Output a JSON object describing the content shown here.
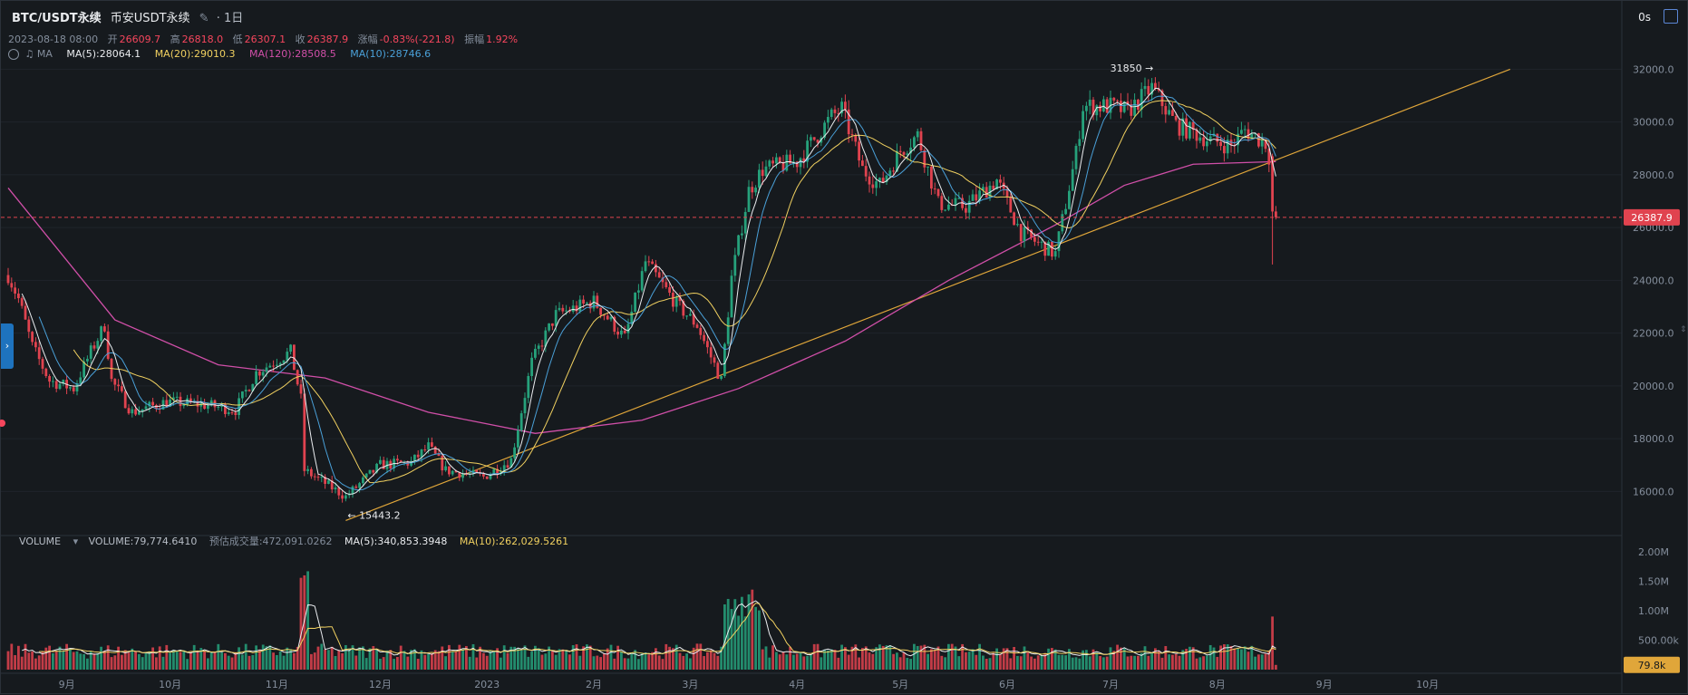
{
  "header": {
    "symbol": "BTC/USDT永续",
    "exchange": "币安USDT永续",
    "interval": "· 1日",
    "date": "2023-08-18 08:00",
    "open_label": "开",
    "open_value": "26609.7",
    "high_label": "高",
    "high_value": "26818.0",
    "low_label": "低",
    "low_value": "26307.1",
    "close_label": "收",
    "close_value": "26387.9",
    "change_label": "涨幅",
    "change_value": "-0.83%(-221.8)",
    "amplitude_label": "振幅",
    "amplitude_value": "1.92%",
    "ma_label": "MA",
    "ma5": "MA(5):28064.1",
    "ma20": "MA(20):29010.3",
    "ma120": "MA(120):28508.5",
    "ma10": "MA(10):28746.6",
    "countdown": "0s"
  },
  "volume_header": {
    "label": "VOLUME",
    "volume": "VOLUME:79,774.6410",
    "estimated": "预估成交量:472,091.0262",
    "ma5": "MA(5):340,853.3948",
    "ma10": "MA(10):262,029.5261"
  },
  "colors": {
    "up": "#26a17b",
    "down": "#e0434f",
    "ma5": "#eaecef",
    "ma10": "#4aa0d8",
    "ma20": "#f0d060",
    "ma120": "#d04fa8",
    "trendline": "#e0a63a",
    "bg": "#161a1e"
  },
  "chart_data": {
    "type": "candlestick",
    "symbol": "BTC/USDT永续",
    "interval": "1日",
    "y_axis_ticks": [
      "32000.0",
      "30000.0",
      "28000.0",
      "26000.0",
      "24000.0",
      "22000.0",
      "20000.0",
      "18000.0",
      "16000.0"
    ],
    "ylim": [
      14400,
      32700
    ],
    "volume_axis_ticks": [
      "2.00M",
      "1.50M",
      "1.00M",
      "500.00k"
    ],
    "volume_ylim": [
      0,
      2150000
    ],
    "x_axis_ticks": [
      "9月",
      "10月",
      "11月",
      "12月",
      "2023",
      "2月",
      "3月",
      "4月",
      "5月",
      "6月",
      "7月",
      "8月",
      "9月",
      "10月"
    ],
    "start_date": "2022-08-15",
    "end_date": "2023-08-18",
    "price_path": [
      [
        "2022-08-15",
        24200
      ],
      [
        "2022-08-18",
        23300
      ],
      [
        "2022-08-22",
        21500
      ],
      [
        "2022-08-27",
        20200
      ],
      [
        "2022-09-03",
        19900
      ],
      [
        "2022-09-08",
        21300
      ],
      [
        "2022-09-12",
        22300
      ],
      [
        "2022-09-14",
        20200
      ],
      [
        "2022-09-20",
        19000
      ],
      [
        "2022-09-30",
        19400
      ],
      [
        "2022-10-10",
        19300
      ],
      [
        "2022-10-20",
        19100
      ],
      [
        "2022-10-26",
        20500
      ],
      [
        "2022-11-05",
        21300
      ],
      [
        "2022-11-08",
        19500
      ],
      [
        "2022-11-09",
        16800
      ],
      [
        "2022-11-14",
        16400
      ],
      [
        "2022-11-21",
        15800
      ],
      [
        "2022-12-01",
        17000
      ],
      [
        "2022-12-10",
        17100
      ],
      [
        "2022-12-15",
        17700
      ],
      [
        "2022-12-20",
        16800
      ],
      [
        "2022-12-31",
        16550
      ],
      [
        "2023-01-08",
        17200
      ],
      [
        "2023-01-14",
        20900
      ],
      [
        "2023-01-21",
        22700
      ],
      [
        "2023-02-01",
        23200
      ],
      [
        "2023-02-10",
        21800
      ],
      [
        "2023-02-16",
        24700
      ],
      [
        "2023-02-25",
        23100
      ],
      [
        "2023-03-03",
        22300
      ],
      [
        "2023-03-10",
        20200
      ],
      [
        "2023-03-13",
        24100
      ],
      [
        "2023-03-18",
        27400
      ],
      [
        "2023-03-22",
        28200
      ],
      [
        "2023-04-01",
        28500
      ],
      [
        "2023-04-11",
        30200
      ],
      [
        "2023-04-14",
        30500
      ],
      [
        "2023-04-20",
        28200
      ],
      [
        "2023-04-25",
        27600
      ],
      [
        "2023-05-01",
        28900
      ],
      [
        "2023-05-06",
        29500
      ],
      [
        "2023-05-12",
        26900
      ],
      [
        "2023-05-20",
        26800
      ],
      [
        "2023-05-29",
        27800
      ],
      [
        "2023-06-05",
        25800
      ],
      [
        "2023-06-15",
        25000
      ],
      [
        "2023-06-21",
        28800
      ],
      [
        "2023-06-23",
        30600
      ],
      [
        "2023-07-01",
        30600
      ],
      [
        "2023-07-06",
        30400
      ],
      [
        "2023-07-13",
        31300
      ],
      [
        "2023-07-20",
        29900
      ],
      [
        "2023-07-30",
        29300
      ],
      [
        "2023-08-05",
        29100
      ],
      [
        "2023-08-09",
        29700
      ],
      [
        "2023-08-15",
        29200
      ],
      [
        "2023-08-16",
        28700
      ],
      [
        "2023-08-17",
        26600
      ],
      [
        "2023-08-18",
        26388
      ]
    ],
    "ma120_path": [
      [
        "2022-08-15",
        27500
      ],
      [
        "2022-09-15",
        22500
      ],
      [
        "2022-10-15",
        20800
      ],
      [
        "2022-11-15",
        20300
      ],
      [
        "2022-12-15",
        19000
      ],
      [
        "2023-01-15",
        18200
      ],
      [
        "2023-02-15",
        18700
      ],
      [
        "2023-03-15",
        19900
      ],
      [
        "2023-04-15",
        21700
      ],
      [
        "2023-05-15",
        24000
      ],
      [
        "2023-06-15",
        26100
      ],
      [
        "2023-07-05",
        27600
      ],
      [
        "2023-07-25",
        28400
      ],
      [
        "2023-08-18",
        28500
      ]
    ],
    "trendline": [
      [
        "2022-11-21",
        14900
      ],
      [
        "2023-10-25",
        32000
      ]
    ],
    "current_price": "26387.9",
    "annotations": [
      {
        "text": "31850",
        "date": "2023-07-14",
        "price": 31850
      },
      {
        "text": "15443.2",
        "date": "2022-11-21",
        "price": 15443.2
      }
    ],
    "volume_now": "79.8k",
    "series": [
      {
        "name": "MA(5)"
      },
      {
        "name": "MA(10)"
      },
      {
        "name": "MA(20)"
      },
      {
        "name": "MA(120)"
      }
    ]
  }
}
